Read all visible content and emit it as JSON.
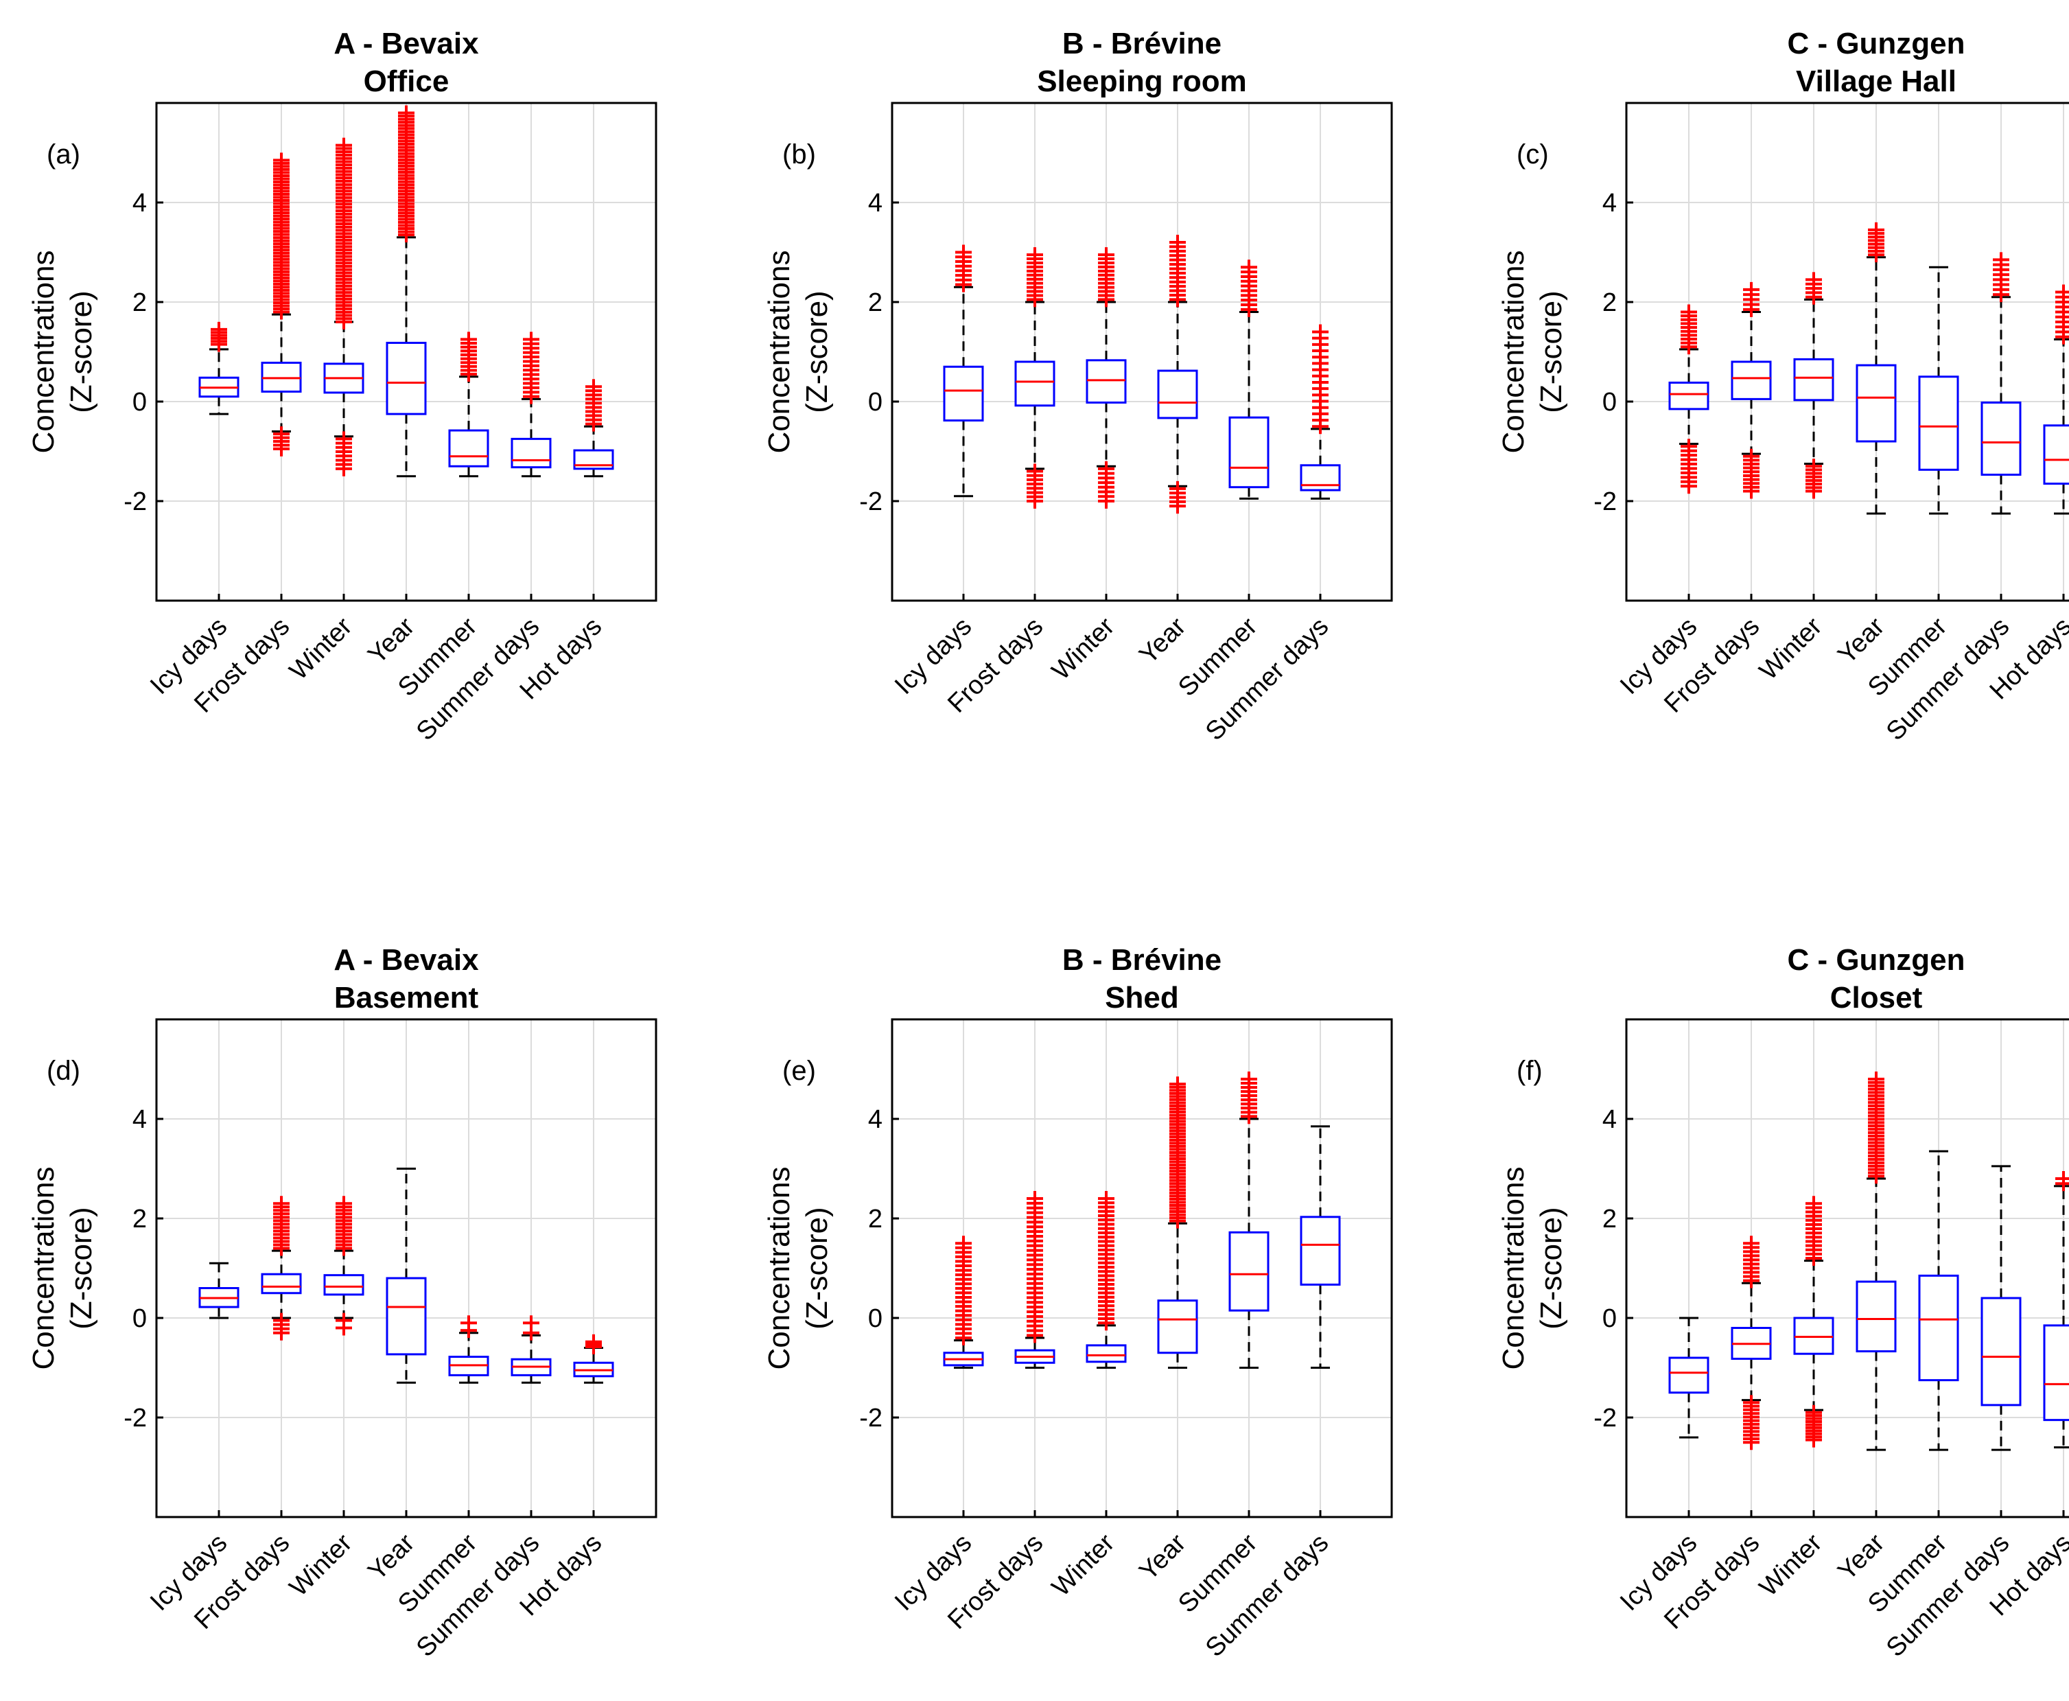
{
  "chart_data": [
    {
      "type": "box",
      "panel_label": "(a)",
      "title_line1": "A - Bevaix",
      "title_line2": "Office",
      "ylabel_line1": "Concentrations",
      "ylabel_line2": "(Z-score)",
      "ylim": [
        -4,
        6
      ],
      "yticks": [
        -2,
        0,
        2,
        4
      ],
      "grid": true,
      "categories": [
        "Icy days",
        "Frost days",
        "Winter",
        "Year",
        "Summer",
        "Summer days",
        "Hot days"
      ],
      "boxes": [
        {
          "whisker_low": -0.25,
          "q1": 0.1,
          "median": 0.28,
          "q3": 0.48,
          "whisker_high": 1.05,
          "outliers": [
            {
              "range": [
                1.15,
                1.45
              ],
              "n": 6
            }
          ]
        },
        {
          "whisker_low": -0.6,
          "q1": 0.2,
          "median": 0.47,
          "q3": 0.78,
          "whisker_high": 1.75,
          "outliers": [
            {
              "range": [
                1.8,
                4.85
              ],
              "n": 50
            },
            {
              "range": [
                -0.95,
                -0.65
              ],
              "n": 5
            }
          ]
        },
        {
          "whisker_low": -0.7,
          "q1": 0.18,
          "median": 0.47,
          "q3": 0.76,
          "whisker_high": 1.6,
          "outliers": [
            {
              "range": [
                1.6,
                5.15
              ],
              "n": 55
            },
            {
              "range": [
                -1.35,
                -0.75
              ],
              "n": 8
            }
          ]
        },
        {
          "whisker_low": -1.5,
          "q1": -0.25,
          "median": 0.38,
          "q3": 1.18,
          "whisker_high": 3.3,
          "outliers": [
            {
              "range": [
                3.35,
                5.8
              ],
              "n": 40
            }
          ]
        },
        {
          "whisker_low": -1.5,
          "q1": -1.3,
          "median": -1.1,
          "q3": -0.58,
          "whisker_high": 0.5,
          "outliers": [
            {
              "range": [
                0.55,
                1.25
              ],
              "n": 10
            }
          ]
        },
        {
          "whisker_low": -1.5,
          "q1": -1.32,
          "median": -1.18,
          "q3": -0.75,
          "whisker_high": 0.05,
          "outliers": [
            {
              "range": [
                0.1,
                1.25
              ],
              "n": 14
            }
          ]
        },
        {
          "whisker_low": -1.5,
          "q1": -1.35,
          "median": -1.28,
          "q3": -0.98,
          "whisker_high": -0.5,
          "outliers": [
            {
              "range": [
                -0.45,
                0.3
              ],
              "n": 10
            }
          ]
        }
      ]
    },
    {
      "type": "box",
      "panel_label": "(b)",
      "title_line1": "B - Brévine",
      "title_line2": "Sleeping room",
      "ylabel_line1": "Concentrations",
      "ylabel_line2": "(Z-score)",
      "ylim": [
        -4,
        6
      ],
      "yticks": [
        -2,
        0,
        2,
        4
      ],
      "grid": true,
      "categories": [
        "Icy days",
        "Frost days",
        "Winter",
        "Year",
        "Summer",
        "Summer days"
      ],
      "boxes": [
        {
          "whisker_low": -1.9,
          "q1": -0.38,
          "median": 0.22,
          "q3": 0.7,
          "whisker_high": 2.3,
          "outliers": [
            {
              "range": [
                2.35,
                3.0
              ],
              "n": 8
            }
          ]
        },
        {
          "whisker_low": -1.35,
          "q1": -0.08,
          "median": 0.4,
          "q3": 0.8,
          "whisker_high": 2.0,
          "outliers": [
            {
              "range": [
                2.05,
                2.95
              ],
              "n": 12
            },
            {
              "range": [
                -2.0,
                -1.4
              ],
              "n": 8
            }
          ]
        },
        {
          "whisker_low": -1.3,
          "q1": -0.02,
          "median": 0.43,
          "q3": 0.83,
          "whisker_high": 2.0,
          "outliers": [
            {
              "range": [
                2.05,
                2.95
              ],
              "n": 12
            },
            {
              "range": [
                -2.0,
                -1.35
              ],
              "n": 8
            }
          ]
        },
        {
          "whisker_low": -1.7,
          "q1": -0.33,
          "median": -0.02,
          "q3": 0.62,
          "whisker_high": 2.0,
          "outliers": [
            {
              "range": [
                2.05,
                3.2
              ],
              "n": 14
            },
            {
              "range": [
                -2.1,
                -1.75
              ],
              "n": 5
            }
          ]
        },
        {
          "whisker_low": -1.95,
          "q1": -1.72,
          "median": -1.33,
          "q3": -0.32,
          "whisker_high": 1.8,
          "outliers": [
            {
              "range": [
                1.85,
                2.7
              ],
              "n": 10
            }
          ]
        },
        {
          "whisker_low": -1.95,
          "q1": -1.78,
          "median": -1.68,
          "q3": -1.28,
          "whisker_high": -0.55,
          "outliers": [
            {
              "range": [
                -0.5,
                1.4
              ],
              "n": 16
            }
          ]
        }
      ]
    },
    {
      "type": "box",
      "panel_label": "(c)",
      "title_line1": "C - Gunzgen",
      "title_line2": "Village Hall",
      "ylabel_line1": "Concentrations",
      "ylabel_line2": "(Z-score)",
      "ylim": [
        -4,
        6
      ],
      "yticks": [
        -2,
        0,
        2,
        4
      ],
      "grid": true,
      "categories": [
        "Icy days",
        "Frost days",
        "Winter",
        "Year",
        "Summer",
        "Summer days",
        "Hot days"
      ],
      "boxes": [
        {
          "whisker_low": -0.85,
          "q1": -0.15,
          "median": 0.15,
          "q3": 0.38,
          "whisker_high": 1.05,
          "outliers": [
            {
              "range": [
                1.1,
                1.8
              ],
              "n": 10
            },
            {
              "range": [
                -1.7,
                -0.9
              ],
              "n": 10
            }
          ]
        },
        {
          "whisker_low": -1.05,
          "q1": 0.05,
          "median": 0.47,
          "q3": 0.8,
          "whisker_high": 1.8,
          "outliers": [
            {
              "range": [
                1.85,
                2.25
              ],
              "n": 5
            },
            {
              "range": [
                -1.8,
                -1.1
              ],
              "n": 10
            }
          ]
        },
        {
          "whisker_low": -1.25,
          "q1": 0.03,
          "median": 0.48,
          "q3": 0.85,
          "whisker_high": 2.05,
          "outliers": [
            {
              "range": [
                2.1,
                2.45
              ],
              "n": 5
            },
            {
              "range": [
                -1.8,
                -1.3
              ],
              "n": 8
            }
          ]
        },
        {
          "whisker_low": -2.25,
          "q1": -0.8,
          "median": 0.08,
          "q3": 0.73,
          "whisker_high": 2.9,
          "outliers": [
            {
              "range": [
                2.95,
                3.45
              ],
              "n": 8
            }
          ]
        },
        {
          "whisker_low": -2.25,
          "q1": -1.37,
          "median": -0.5,
          "q3": 0.5,
          "whisker_high": 2.7,
          "outliers": []
        },
        {
          "whisker_low": -2.25,
          "q1": -1.47,
          "median": -0.82,
          "q3": -0.02,
          "whisker_high": 2.1,
          "outliers": [
            {
              "range": [
                2.15,
                2.85
              ],
              "n": 8
            }
          ]
        },
        {
          "whisker_low": -2.25,
          "q1": -1.65,
          "median": -1.17,
          "q3": -0.48,
          "whisker_high": 1.25,
          "outliers": [
            {
              "range": [
                1.3,
                2.2
              ],
              "n": 10
            }
          ]
        }
      ]
    },
    {
      "type": "box",
      "panel_label": "(d)",
      "title_line1": "A - Bevaix",
      "title_line2": "Basement",
      "ylabel_line1": "Concentrations",
      "ylabel_line2": "(Z-score)",
      "ylim": [
        -4,
        6
      ],
      "yticks": [
        -2,
        0,
        2,
        4
      ],
      "grid": true,
      "categories": [
        "Icy days",
        "Frost days",
        "Winter",
        "Year",
        "Summer",
        "Summer days",
        "Hot days"
      ],
      "boxes": [
        {
          "whisker_low": 0.0,
          "q1": 0.22,
          "median": 0.4,
          "q3": 0.6,
          "whisker_high": 1.1,
          "outliers": []
        },
        {
          "whisker_low": 0.0,
          "q1": 0.5,
          "median": 0.63,
          "q3": 0.88,
          "whisker_high": 1.35,
          "outliers": [
            {
              "range": [
                1.4,
                2.3
              ],
              "n": 14
            },
            {
              "range": [
                -0.3,
                -0.05
              ],
              "n": 4
            }
          ]
        },
        {
          "whisker_low": 0.0,
          "q1": 0.47,
          "median": 0.63,
          "q3": 0.86,
          "whisker_high": 1.35,
          "outliers": [
            {
              "range": [
                1.4,
                2.3
              ],
              "n": 14
            },
            {
              "range": [
                -0.2,
                -0.05
              ],
              "n": 2
            }
          ]
        },
        {
          "whisker_low": -1.3,
          "q1": -0.73,
          "median": 0.22,
          "q3": 0.8,
          "whisker_high": 3.0,
          "outliers": []
        },
        {
          "whisker_low": -1.3,
          "q1": -1.15,
          "median": -0.95,
          "q3": -0.78,
          "whisker_high": -0.3,
          "outliers": [
            {
              "range": [
                -0.25,
                -0.1
              ],
              "n": 2
            }
          ]
        },
        {
          "whisker_low": -1.3,
          "q1": -1.15,
          "median": -0.98,
          "q3": -0.83,
          "whisker_high": -0.35,
          "outliers": [
            {
              "range": [
                -0.3,
                -0.1
              ],
              "n": 2
            }
          ]
        },
        {
          "whisker_low": -1.3,
          "q1": -1.17,
          "median": -1.05,
          "q3": -0.9,
          "whisker_high": -0.6,
          "outliers": [
            {
              "range": [
                -0.58,
                -0.48
              ],
              "n": 3
            }
          ]
        }
      ]
    },
    {
      "type": "box",
      "panel_label": "(e)",
      "title_line1": "B - Brévine",
      "title_line2": "Shed",
      "ylabel_line1": "Concentrations",
      "ylabel_line2": "(Z-score)",
      "ylim": [
        -4,
        6
      ],
      "yticks": [
        -2,
        0,
        2,
        4
      ],
      "grid": true,
      "categories": [
        "Icy days",
        "Frost days",
        "Winter",
        "Year",
        "Summer",
        "Summer days"
      ],
      "boxes": [
        {
          "whisker_low": -1.0,
          "q1": -0.95,
          "median": -0.83,
          "q3": -0.7,
          "whisker_high": -0.45,
          "outliers": [
            {
              "range": [
                -0.4,
                1.5
              ],
              "n": 22
            }
          ]
        },
        {
          "whisker_low": -1.0,
          "q1": -0.9,
          "median": -0.78,
          "q3": -0.65,
          "whisker_high": -0.4,
          "outliers": [
            {
              "range": [
                -0.35,
                2.4
              ],
              "n": 30
            }
          ]
        },
        {
          "whisker_low": -1.0,
          "q1": -0.88,
          "median": -0.75,
          "q3": -0.55,
          "whisker_high": -0.15,
          "outliers": [
            {
              "range": [
                -0.1,
                2.4
              ],
              "n": 30
            }
          ]
        },
        {
          "whisker_low": -1.0,
          "q1": -0.7,
          "median": -0.03,
          "q3": 0.35,
          "whisker_high": 1.9,
          "outliers": [
            {
              "range": [
                1.95,
                4.7
              ],
              "n": 45
            }
          ]
        },
        {
          "whisker_low": -1.0,
          "q1": 0.15,
          "median": 0.88,
          "q3": 1.72,
          "whisker_high": 4.0,
          "outliers": [
            {
              "range": [
                4.05,
                4.8
              ],
              "n": 10
            }
          ]
        },
        {
          "whisker_low": -1.0,
          "q1": 0.67,
          "median": 1.47,
          "q3": 2.03,
          "whisker_high": 3.85,
          "outliers": []
        }
      ]
    },
    {
      "type": "box",
      "panel_label": "(f)",
      "title_line1": "C - Gunzgen",
      "title_line2": "Closet",
      "ylabel_line1": "Concentrations",
      "ylabel_line2": "(Z-score)",
      "ylim": [
        -4,
        6
      ],
      "yticks": [
        -2,
        0,
        2,
        4
      ],
      "grid": true,
      "categories": [
        "Icy days",
        "Frost days",
        "Winter",
        "Year",
        "Summer",
        "Summer days",
        "Hot days"
      ],
      "boxes": [
        {
          "whisker_low": -2.4,
          "q1": -1.5,
          "median": -1.1,
          "q3": -0.8,
          "whisker_high": 0.0,
          "outliers": []
        },
        {
          "whisker_low": -1.65,
          "q1": -0.82,
          "median": -0.52,
          "q3": -0.2,
          "whisker_high": 0.7,
          "outliers": [
            {
              "range": [
                0.75,
                1.5
              ],
              "n": 10
            },
            {
              "range": [
                -2.5,
                -1.7
              ],
              "n": 12
            }
          ]
        },
        {
          "whisker_low": -1.85,
          "q1": -0.72,
          "median": -0.38,
          "q3": 0.0,
          "whisker_high": 1.15,
          "outliers": [
            {
              "range": [
                1.2,
                2.3
              ],
              "n": 14
            },
            {
              "range": [
                -2.45,
                -1.9
              ],
              "n": 10
            }
          ]
        },
        {
          "whisker_low": -2.65,
          "q1": -0.67,
          "median": -0.02,
          "q3": 0.73,
          "whisker_high": 2.8,
          "outliers": [
            {
              "range": [
                2.85,
                4.8
              ],
              "n": 30
            }
          ]
        },
        {
          "whisker_low": -2.65,
          "q1": -1.25,
          "median": -0.03,
          "q3": 0.85,
          "whisker_high": 3.35,
          "outliers": []
        },
        {
          "whisker_low": -2.65,
          "q1": -1.75,
          "median": -0.78,
          "q3": 0.4,
          "whisker_high": 3.05,
          "outliers": []
        },
        {
          "whisker_low": -2.6,
          "q1": -2.05,
          "median": -1.33,
          "q3": -0.15,
          "whisker_high": 2.65,
          "outliers": [
            {
              "range": [
                2.7,
                2.8
              ],
              "n": 2
            }
          ]
        }
      ]
    }
  ],
  "colors": {
    "box": "#0000ff",
    "median": "#ff0000",
    "outlier": "#ff0000",
    "whisker": "#000000",
    "grid": "#dcdcdc",
    "axis": "#000000"
  }
}
